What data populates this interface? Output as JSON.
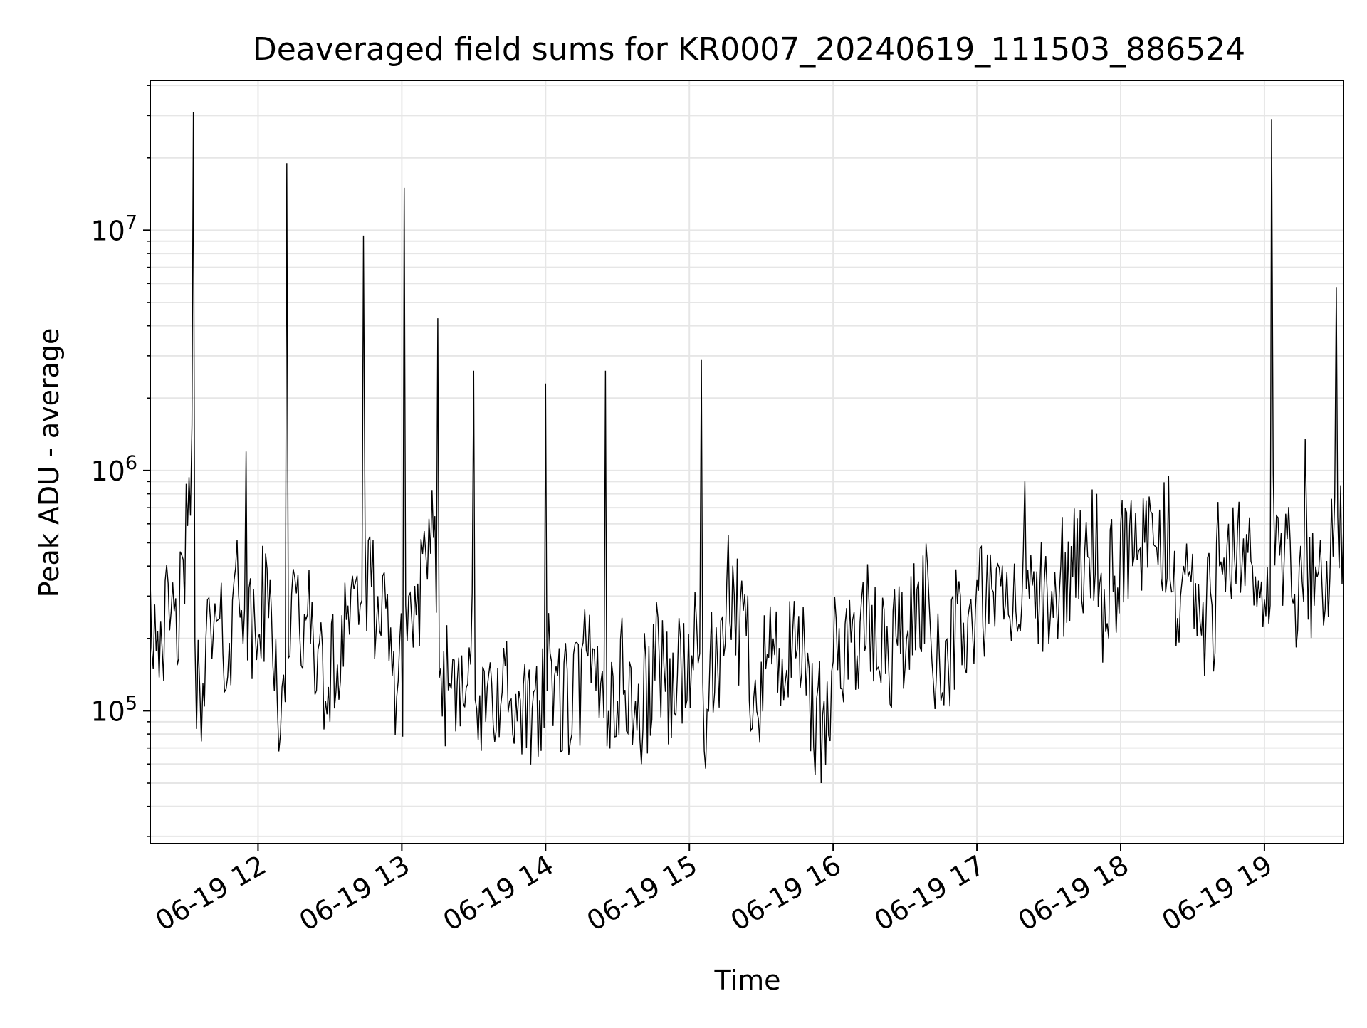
{
  "chart_data": {
    "type": "line",
    "title": "Deaveraged field sums for KR0007_20240619_111503_886524",
    "xlabel": "Time",
    "ylabel": "Peak ADU - average",
    "y_scale": "log",
    "ylim": [
      28000,
      42000000
    ],
    "xlim": [
      "2024-06-19 11:15",
      "2024-06-19 19:33"
    ],
    "grid": true,
    "line_color": "#000000",
    "x_ticks": [
      {
        "value": "2024-06-19 12:00",
        "label": "06-19 12"
      },
      {
        "value": "2024-06-19 13:00",
        "label": "06-19 13"
      },
      {
        "value": "2024-06-19 14:00",
        "label": "06-19 14"
      },
      {
        "value": "2024-06-19 15:00",
        "label": "06-19 15"
      },
      {
        "value": "2024-06-19 16:00",
        "label": "06-19 16"
      },
      {
        "value": "2024-06-19 17:00",
        "label": "06-19 17"
      },
      {
        "value": "2024-06-19 18:00",
        "label": "06-19 18"
      },
      {
        "value": "2024-06-19 19:00",
        "label": "06-19 19"
      }
    ],
    "y_ticks": [
      {
        "value": 100000,
        "base": "10",
        "exp": "5"
      },
      {
        "value": 1000000,
        "base": "10",
        "exp": "6"
      },
      {
        "value": 10000000,
        "base": "10",
        "exp": "7"
      }
    ],
    "series": [
      {
        "x": [
          "2024-06-19 11:15",
          "2024-06-19 11:20",
          "2024-06-19 11:25",
          "2024-06-19 11:30",
          "2024-06-19 11:33",
          "2024-06-19 11:37",
          "2024-06-19 11:42",
          "2024-06-19 11:46",
          "2024-06-19 11:50",
          "2024-06-19 11:55",
          "2024-06-19 12:00",
          "2024-06-19 12:05",
          "2024-06-19 12:08",
          "2024-06-19 12:12",
          "2024-06-19 12:20",
          "2024-06-19 12:25",
          "2024-06-19 12:30",
          "2024-06-19 12:35",
          "2024-06-19 12:40",
          "2024-06-19 12:44",
          "2024-06-19 12:50",
          "2024-06-19 12:56",
          "2024-06-19 13:01",
          "2024-06-19 13:06",
          "2024-06-19 13:12",
          "2024-06-19 13:15",
          "2024-06-19 13:20",
          "2024-06-19 13:25",
          "2024-06-19 13:30",
          "2024-06-19 13:35",
          "2024-06-19 13:40",
          "2024-06-19 13:45",
          "2024-06-19 13:52",
          "2024-06-19 13:55",
          "2024-06-19 14:00",
          "2024-06-19 14:05",
          "2024-06-19 14:11",
          "2024-06-19 14:15",
          "2024-06-19 14:19",
          "2024-06-19 14:25",
          "2024-06-19 14:30",
          "2024-06-19 14:35",
          "2024-06-19 14:40",
          "2024-06-19 14:45",
          "2024-06-19 14:50",
          "2024-06-19 14:55",
          "2024-06-19 15:01",
          "2024-06-19 15:05",
          "2024-06-19 15:08",
          "2024-06-19 15:15",
          "2024-06-19 15:20",
          "2024-06-19 15:25",
          "2024-06-19 15:30",
          "2024-06-19 15:35",
          "2024-06-19 15:40",
          "2024-06-19 15:45",
          "2024-06-19 15:50",
          "2024-06-19 15:55",
          "2024-06-19 16:00",
          "2024-06-19 16:05",
          "2024-06-19 16:10",
          "2024-06-19 16:15",
          "2024-06-19 16:20",
          "2024-06-19 16:25",
          "2024-06-19 16:30",
          "2024-06-19 16:35",
          "2024-06-19 16:40",
          "2024-06-19 16:45",
          "2024-06-19 16:50",
          "2024-06-19 16:55",
          "2024-06-19 17:00",
          "2024-06-19 17:05",
          "2024-06-19 17:10",
          "2024-06-19 17:15",
          "2024-06-19 17:20",
          "2024-06-19 17:25",
          "2024-06-19 17:30",
          "2024-06-19 17:35",
          "2024-06-19 17:40",
          "2024-06-19 17:45",
          "2024-06-19 17:50",
          "2024-06-19 17:55",
          "2024-06-19 18:00",
          "2024-06-19 18:05",
          "2024-06-19 18:10",
          "2024-06-19 18:15",
          "2024-06-19 18:20",
          "2024-06-19 18:25",
          "2024-06-19 18:30",
          "2024-06-19 18:35",
          "2024-06-19 18:40",
          "2024-06-19 18:45",
          "2024-06-19 18:50",
          "2024-06-19 18:55",
          "2024-06-19 19:00",
          "2024-06-19 19:03",
          "2024-06-19 19:07",
          "2024-06-19 19:12",
          "2024-06-19 19:17",
          "2024-06-19 19:22",
          "2024-06-19 19:26",
          "2024-06-19 19:30",
          "2024-06-19 19:33"
        ],
        "y": [
          350000,
          180000,
          260000,
          880000,
          31000000,
          130000,
          280000,
          120000,
          350000,
          1200000,
          200000,
          350000,
          110000,
          19000000,
          240000,
          180000,
          90000,
          250000,
          320000,
          9500000,
          300000,
          140000,
          15000000,
          250000,
          450000,
          4300000,
          130000,
          170000,
          2600000,
          90000,
          150000,
          110000,
          70000,
          120000,
          2300000,
          140000,
          80000,
          180000,
          130000,
          2600000,
          110000,
          160000,
          60000,
          230000,
          120000,
          140000,
          170000,
          2900000,
          100000,
          190000,
          430000,
          110000,
          160000,
          200000,
          130000,
          180000,
          150000,
          50000,
          160000,
          230000,
          170000,
          280000,
          130000,
          260000,
          150000,
          320000,
          290000,
          110000,
          300000,
          150000,
          350000,
          230000,
          330000,
          260000,
          900000,
          380000,
          190000,
          400000,
          360000,
          460000,
          800000,
          200000,
          600000,
          400000,
          500000,
          480000,
          950000,
          300000,
          450000,
          140000,
          500000,
          600000,
          310000,
          400000,
          290000,
          29000000,
          550000,
          280000,
          1350000,
          360000,
          420000,
          5800000,
          600000
        ]
      }
    ]
  }
}
